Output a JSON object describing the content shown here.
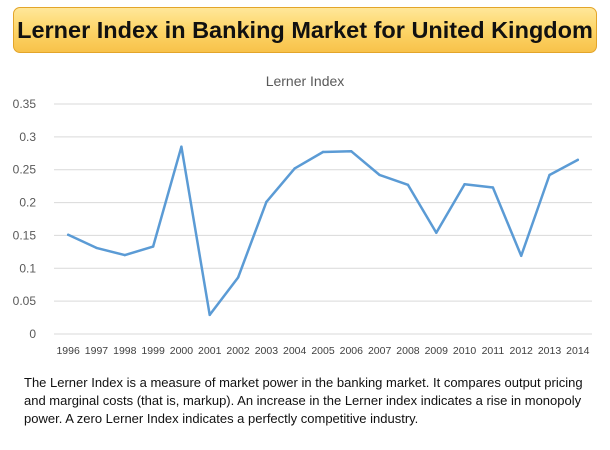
{
  "banner": {
    "title": "Lerner Index in Banking Market for United Kingdom"
  },
  "chart_data": {
    "type": "line",
    "title": "Lerner Index",
    "xlabel": "",
    "ylabel": "",
    "categories": [
      "1996",
      "1997",
      "1998",
      "1999",
      "2000",
      "2001",
      "2002",
      "2003",
      "2004",
      "2005",
      "2006",
      "2007",
      "2008",
      "2009",
      "2010",
      "2011",
      "2012",
      "2013",
      "2014"
    ],
    "series": [
      {
        "values": [
          0.151,
          0.131,
          0.12,
          0.133,
          0.285,
          0.029,
          0.086,
          0.201,
          0.252,
          0.277,
          0.278,
          0.242,
          0.227,
          0.154,
          0.228,
          0.223,
          0.119,
          0.242,
          0.265
        ]
      }
    ],
    "ylim": [
      0,
      0.35
    ],
    "yticks": [
      "0",
      "0.05",
      "0.1",
      "0.15",
      "0.2",
      "0.25",
      "0.3",
      "0.35"
    ],
    "grid": true,
    "legend": "none",
    "line_color": "#5b9bd5"
  },
  "caption": {
    "text": "The Lerner Index is a measure of market power in the banking market. It compares output pricing and marginal costs (that is, markup). An increase in the Lerner index indicates a rise in monopoly power. A zero Lerner Index indicates a perfectly competitive industry."
  }
}
